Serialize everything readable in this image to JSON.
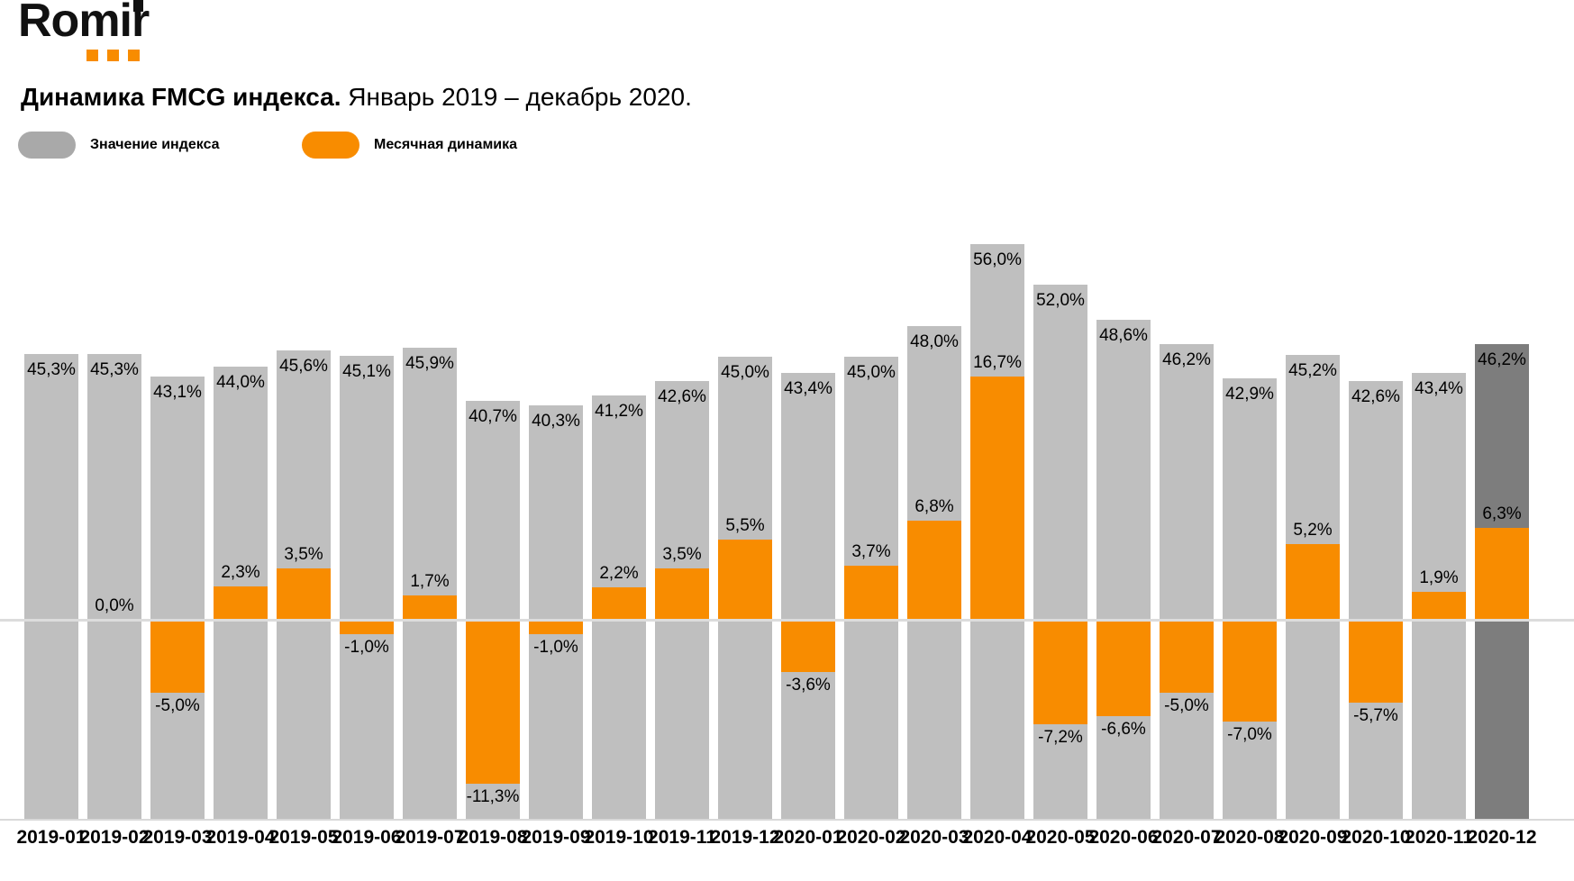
{
  "logo": {
    "text": "Romir"
  },
  "title": {
    "bold": "Динамика FMCG индекса.",
    "period": " Январь 2019 – декабрь 2020."
  },
  "legend": [
    {
      "label": "Значение индекса",
      "color": "#A9A9A9"
    },
    {
      "label": "Месячная динамика",
      "color": "#F88C00"
    }
  ],
  "colors": {
    "index_bar": "#BFBFBF",
    "index_bar_highlight": "#7D7D7D",
    "dynamics_bar": "#F88C00",
    "grid_line": "#D9D9D9",
    "label_text": "#000000"
  },
  "chart_data": {
    "type": "bar",
    "title": "Динамика FMCG индекса. Январь 2019 – декабрь 2020.",
    "grid": "off",
    "legend_position": "top-left",
    "categories": [
      "2019-01",
      "2019-02",
      "2019-03",
      "2019-04",
      "2019-05",
      "2019-06",
      "2019-07",
      "2019-08",
      "2019-09",
      "2019-10",
      "2019-11",
      "2019-12",
      "2020-01",
      "2020-02",
      "2020-03",
      "2020-04",
      "2020-05",
      "2020-06",
      "2020-07",
      "2020-08",
      "2020-09",
      "2020-10",
      "2020-11",
      "2020-12"
    ],
    "series": [
      {
        "name": "Значение индекса",
        "unit": "%",
        "values": [
          45.3,
          45.3,
          43.1,
          44.0,
          45.6,
          45.1,
          45.9,
          40.7,
          40.3,
          41.2,
          42.6,
          45.0,
          43.4,
          45.0,
          48.0,
          56.0,
          52.0,
          48.6,
          46.2,
          42.9,
          45.2,
          42.6,
          43.4,
          46.2
        ],
        "labels": [
          "45,3%",
          "45,3%",
          "43,1%",
          "44,0%",
          "45,6%",
          "45,1%",
          "45,9%",
          "40,7%",
          "40,3%",
          "41,2%",
          "42,6%",
          "45,0%",
          "43,4%",
          "45,0%",
          "48,0%",
          "56,0%",
          "52,0%",
          "48,6%",
          "46,2%",
          "42,9%",
          "45,2%",
          "42,6%",
          "43,4%",
          "46,2%"
        ]
      },
      {
        "name": "Месячная динамика",
        "unit": "%",
        "values": [
          null,
          0.0,
          -5.0,
          2.3,
          3.5,
          -1.0,
          1.7,
          -11.3,
          -1.0,
          2.2,
          3.5,
          5.5,
          -3.6,
          3.7,
          6.8,
          16.7,
          -7.2,
          -6.6,
          -5.0,
          -7.0,
          5.2,
          -5.7,
          1.9,
          6.3
        ],
        "labels": [
          null,
          "0,0%",
          "-5,0%",
          "2,3%",
          "3,5%",
          "-1,0%",
          "1,7%",
          "-11,3%",
          "-1,0%",
          "2,2%",
          "3,5%",
          "5,5%",
          "-3,6%",
          "3,7%",
          "6,8%",
          "16,7%",
          "-7,2%",
          "-6,6%",
          "-5,0%",
          "-7,0%",
          "5,2%",
          "-5,7%",
          "1,9%",
          "6,3%"
        ]
      }
    ],
    "highlight_category": "2020-12"
  }
}
